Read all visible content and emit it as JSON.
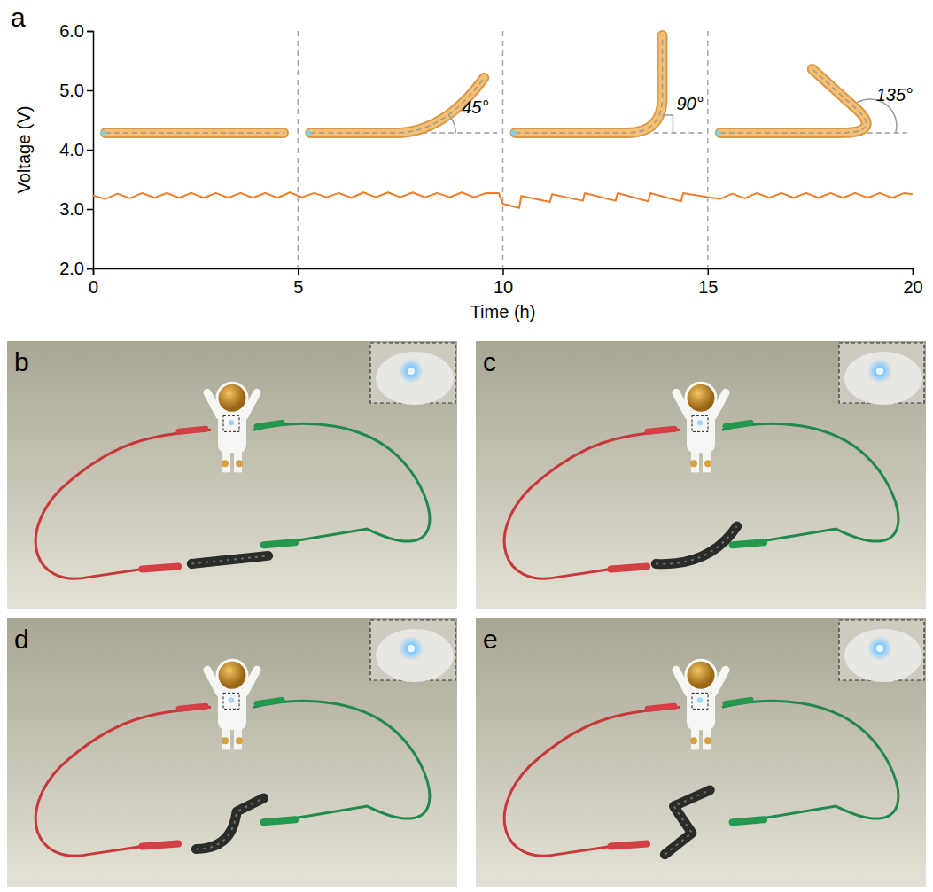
{
  "chart_data": {
    "type": "line",
    "panel_label": "a",
    "xlabel": "Time (h)",
    "ylabel": "Voltage (V)",
    "color": "#ee7d2b",
    "xlim": [
      0,
      20
    ],
    "xticks": [
      0,
      5,
      10,
      15,
      20
    ],
    "ylim": [
      2,
      6
    ],
    "yticks": [
      {
        "value": 2,
        "label": "2.0"
      },
      {
        "value": 3,
        "label": "3.0"
      },
      {
        "value": 4,
        "label": "4.0"
      },
      {
        "value": 5,
        "label": "5.0"
      },
      {
        "value": 6,
        "label": "6.0"
      }
    ],
    "annotations": [
      "45°",
      "90°",
      "135°"
    ],
    "x": [
      0,
      0.3,
      0.6,
      0.9,
      1.2,
      1.5,
      1.8,
      2.1,
      2.4,
      2.7,
      3.0,
      3.3,
      3.6,
      3.9,
      4.2,
      4.5,
      4.8,
      5.1,
      5.4,
      5.7,
      6.0,
      6.3,
      6.6,
      6.9,
      7.2,
      7.5,
      7.8,
      8.1,
      8.4,
      8.7,
      9.0,
      9.3,
      9.6,
      9.9,
      10.0,
      10.4,
      10.45,
      11.15,
      11.2,
      11.95,
      12.0,
      12.75,
      12.8,
      13.55,
      13.6,
      14.35,
      14.4,
      15.0,
      15.3,
      15.6,
      15.9,
      16.2,
      16.5,
      16.8,
      17.1,
      17.4,
      17.7,
      18.0,
      18.3,
      18.6,
      18.9,
      19.2,
      19.5,
      19.8,
      20.0
    ],
    "values": [
      3.23,
      3.17,
      3.26,
      3.18,
      3.27,
      3.19,
      3.27,
      3.19,
      3.27,
      3.19,
      3.27,
      3.19,
      3.27,
      3.19,
      3.27,
      3.19,
      3.28,
      3.2,
      3.27,
      3.2,
      3.27,
      3.19,
      3.28,
      3.2,
      3.28,
      3.2,
      3.28,
      3.2,
      3.27,
      3.2,
      3.28,
      3.2,
      3.27,
      3.27,
      3.09,
      3.02,
      3.22,
      3.12,
      3.25,
      3.14,
      3.27,
      3.14,
      3.27,
      3.13,
      3.27,
      3.13,
      3.27,
      3.2,
      3.17,
      3.26,
      3.18,
      3.27,
      3.19,
      3.27,
      3.19,
      3.27,
      3.19,
      3.27,
      3.19,
      3.27,
      3.19,
      3.27,
      3.19,
      3.27,
      3.25
    ]
  },
  "photo_panels": [
    {
      "label": "b"
    },
    {
      "label": "c"
    },
    {
      "label": "d"
    },
    {
      "label": "e"
    }
  ]
}
